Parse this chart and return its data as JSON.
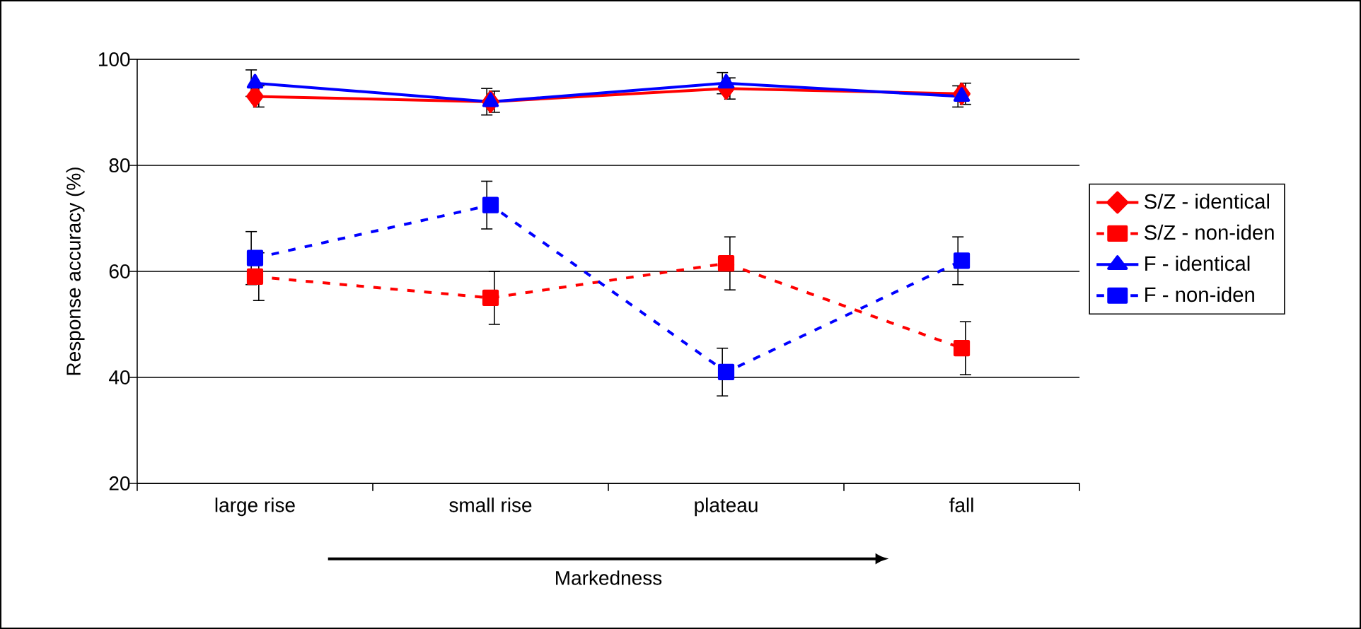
{
  "chart_data": {
    "type": "line",
    "xlabel": "Markedness",
    "ylabel": "Response accuracy (%)",
    "categories": [
      "large rise",
      "small rise",
      "plateau",
      "fall"
    ],
    "ylim": [
      20,
      100
    ],
    "yticks": [
      20,
      40,
      60,
      80,
      100
    ],
    "grid": "y",
    "legend": "right",
    "series": [
      {
        "name": "S/Z - identical",
        "color": "#ff0000",
        "marker": "diamond",
        "line_style": "solid",
        "values": [
          93,
          92,
          94.5,
          93.5
        ],
        "errors": [
          2,
          2,
          2,
          2
        ]
      },
      {
        "name": "S/Z - non-iden",
        "color": "#ff0000",
        "marker": "square",
        "line_style": "dashed",
        "values": [
          59,
          55,
          61.5,
          45.5
        ],
        "errors": [
          4.5,
          5,
          5,
          5
        ]
      },
      {
        "name": "F - identical",
        "color": "#0000ff",
        "marker": "triangle",
        "line_style": "solid",
        "values": [
          95.5,
          92,
          95.5,
          93
        ],
        "errors": [
          2.5,
          2.5,
          2,
          2
        ]
      },
      {
        "name": "F - non-iden",
        "color": "#0000ff",
        "marker": "square",
        "line_style": "dashed",
        "values": [
          62.5,
          72.5,
          41,
          62
        ],
        "errors": [
          5,
          4.5,
          4.5,
          4.5
        ]
      }
    ]
  }
}
